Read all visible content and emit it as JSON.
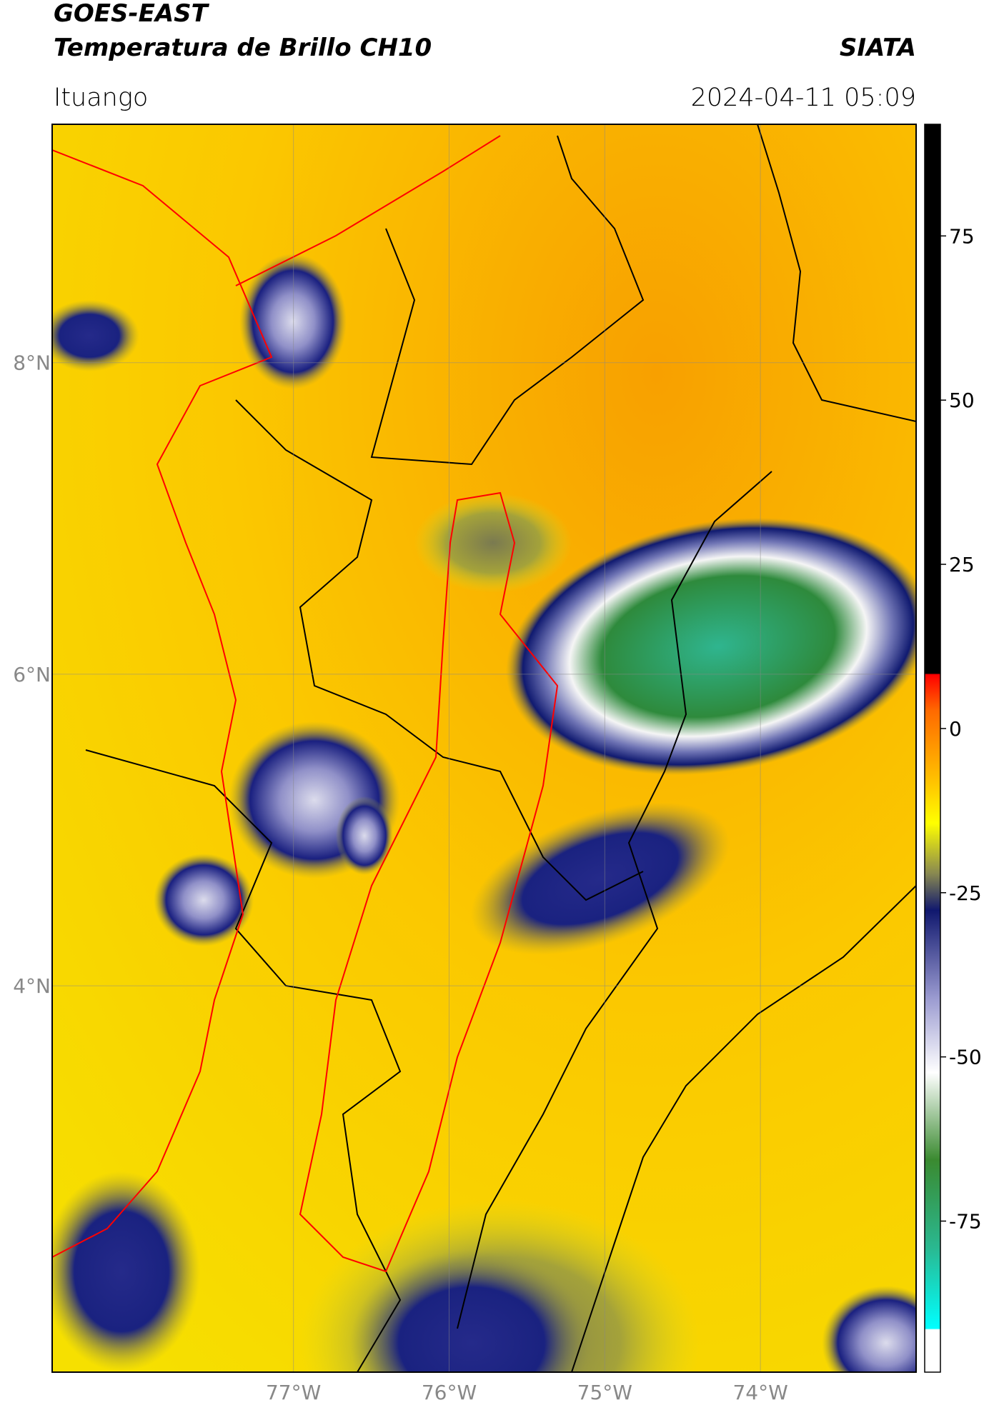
{
  "header": {
    "title": "GOES-EAST",
    "subtitle": "Temperatura de Brillo CH10",
    "brand": "SIATA",
    "location": "Ituango",
    "datetime": "2024-04-11 05:09"
  },
  "map": {
    "xlim": [
      -78.55,
      -73.0
    ],
    "ylim": [
      1.52,
      9.53
    ],
    "xticks": [
      {
        "value": -77,
        "label": "77°W"
      },
      {
        "value": -76,
        "label": "76°W"
      },
      {
        "value": -75,
        "label": "75°W"
      },
      {
        "value": -74,
        "label": "74°W"
      }
    ],
    "yticks": [
      {
        "value": 8,
        "label": "8°N"
      },
      {
        "value": 6,
        "label": "6°N"
      },
      {
        "value": 4,
        "label": "4°N"
      }
    ],
    "grid": true
  },
  "colorbar": {
    "lim": [
      -98,
      92
    ],
    "ticks": [
      75,
      50,
      25,
      0,
      -25,
      -50,
      -75
    ]
  }
}
